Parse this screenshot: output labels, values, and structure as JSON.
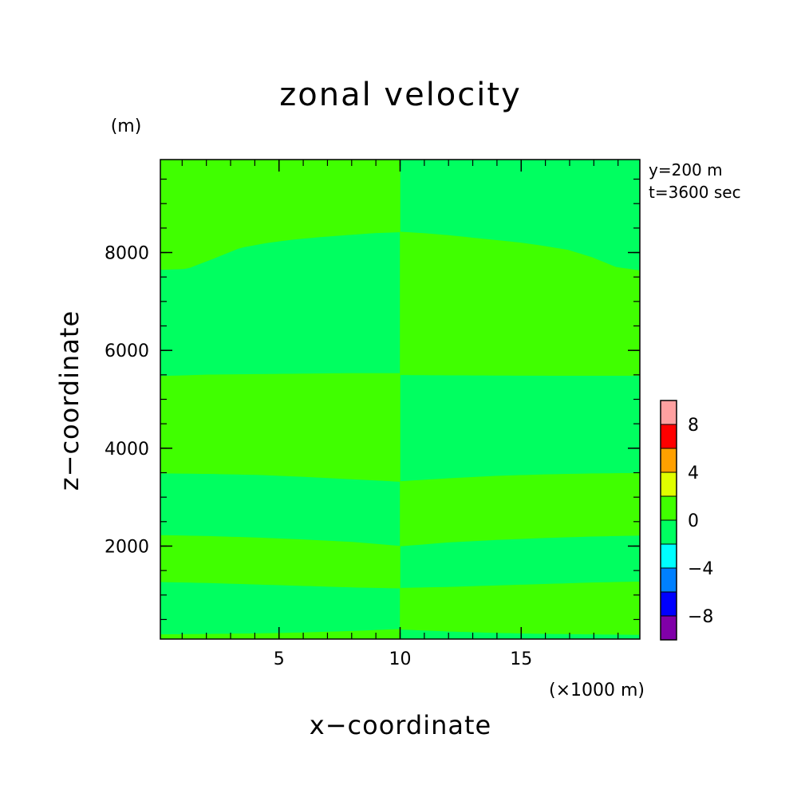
{
  "chart_data": {
    "type": "heatmap",
    "title": "zonal velocity",
    "xlabel": "x−coordinate",
    "ylabel": "z−coordinate",
    "x_unit": "(×1000 m)",
    "y_unit": "(m)",
    "annotations": [
      "y=200 m",
      "t=3600 sec"
    ],
    "xlim": [
      0.1,
      19.9
    ],
    "ylim": [
      100,
      9900
    ],
    "x_ticks": [
      {
        "value": 5,
        "label": "5"
      },
      {
        "value": 10,
        "label": "10"
      },
      {
        "value": 15,
        "label": "15"
      }
    ],
    "x_minor_step": 1,
    "y_ticks": [
      {
        "value": 2000,
        "label": "2000"
      },
      {
        "value": 4000,
        "label": "4000"
      },
      {
        "value": 6000,
        "label": "6000"
      },
      {
        "value": 8000,
        "label": "8000"
      }
    ],
    "y_minor_step": 500,
    "contour_levels": [
      -10,
      -8,
      -6,
      -4,
      -2,
      0,
      2,
      4,
      6,
      8,
      10
    ],
    "colorbar": {
      "placement": "right",
      "levels": [
        -10,
        -8,
        -6,
        -4,
        -2,
        0,
        2,
        4,
        6,
        8,
        10
      ],
      "colors": [
        "#8000a8",
        "#0000ff",
        "#0080ff",
        "#00ffff",
        "#00ff60",
        "#40ff00",
        "#e0ff00",
        "#ffa000",
        "#ff0000",
        "#ffa0a0"
      ],
      "tick_labels": [
        {
          "value": -8,
          "label": "−8"
        },
        {
          "value": -4,
          "label": "−4"
        },
        {
          "value": 0,
          "label": "0"
        },
        {
          "value": 4,
          "label": "4"
        },
        {
          "value": 8,
          "label": "8"
        }
      ]
    },
    "background_band": {
      "min": -2,
      "max": 0,
      "color": "#00ff60"
    },
    "regions": [
      {
        "range": [
          0,
          2
        ],
        "color": "#40ff00",
        "x": [
          0.1,
          10
        ],
        "upper_z": [
          9900,
          9900
        ],
        "lower_z": [
          7650,
          7670,
          7880,
          8100,
          8200,
          8270,
          8320,
          8360,
          8400,
          8420
        ]
      },
      {
        "range": [
          0,
          2
        ],
        "color": "#40ff00",
        "x": [
          10,
          19.9
        ],
        "upper_z": [
          8420,
          8390,
          8350,
          8300,
          8250,
          8200,
          8130,
          8050,
          7900,
          7700,
          7630
        ],
        "lower_z": [
          5500,
          5495,
          5490,
          5487,
          5485,
          5485
        ]
      },
      {
        "range": [
          0,
          2
        ],
        "color": "#40ff00",
        "x": [
          0.1,
          10
        ],
        "upper_z": [
          5470,
          5500,
          5510,
          5520,
          5530,
          5530
        ],
        "lower_z": [
          3490,
          3480,
          3460,
          3420,
          3370,
          3320
        ]
      },
      {
        "range": [
          0,
          2
        ],
        "color": "#40ff00",
        "x": [
          10,
          19.9
        ],
        "upper_z": [
          3320,
          3380,
          3430,
          3460,
          3480,
          3490
        ],
        "lower_z": [
          2000,
          2080,
          2130,
          2170,
          2200,
          2220
        ]
      },
      {
        "range": [
          0,
          2
        ],
        "color": "#40ff00",
        "x": [
          0.1,
          10
        ],
        "upper_z": [
          2220,
          2200,
          2170,
          2130,
          2080,
          2000
        ],
        "lower_z": [
          1270,
          1250,
          1220,
          1190,
          1160,
          1140
        ]
      },
      {
        "range": [
          0,
          2
        ],
        "color": "#40ff00",
        "x": [
          10,
          19.9
        ],
        "upper_z": [
          1140,
          1160,
          1190,
          1220,
          1250,
          1270
        ],
        "lower_z": [
          300,
          260,
          230,
          210,
          200,
          190
        ]
      },
      {
        "range": [
          0,
          2
        ],
        "color": "#40ff00",
        "x": [
          0.1,
          10
        ],
        "upper_z": [
          190,
          200,
          210,
          230,
          260,
          300
        ],
        "lower_z": [
          100,
          100
        ]
      }
    ]
  }
}
